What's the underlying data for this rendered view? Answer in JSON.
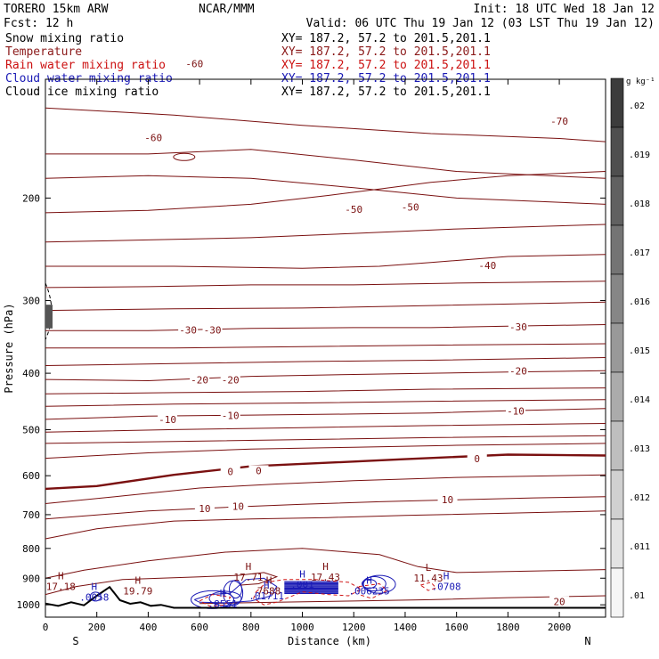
{
  "header": {
    "model": "TORERO  15km ARW",
    "center": "NCAR/MMM",
    "init": "Init: 18 UTC Wed 18 Jan 12",
    "fcst": "Fcst:   12 h",
    "valid": "Valid: 06 UTC Thu 19 Jan 12 (03 LST Thu 19 Jan 12)"
  },
  "fields": [
    {
      "name": "Snow mixing ratio",
      "xy": "XY= 187.2, 57.2 to 201.5,201.1",
      "color": "#000000"
    },
    {
      "name": "Temperature",
      "xy": "XY= 187.2, 57.2 to 201.5,201.1",
      "color": "#8b1a1a"
    },
    {
      "name": "Rain water mixing ratio",
      "xy": "XY= 187.2, 57.2 to 201.5,201.1",
      "color": "#cc1111"
    },
    {
      "name": "Cloud water mixing ratio",
      "xy": "XY= 187.2, 57.2 to 201.5,201.1",
      "color": "#1a1ab5"
    },
    {
      "name": "Cloud ice mixing ratio",
      "xy": "XY= 187.2, 57.2 to 201.5,201.1",
      "color": "#000000"
    }
  ],
  "colors": {
    "temperature": "#7a1010",
    "rain": "#d01818",
    "cloud_water": "#1a1ab5",
    "snow": "#000000",
    "terrain": "#000000"
  },
  "chart_data": {
    "type": "contour",
    "xlabel": "Distance (km)",
    "ylabel": "Pressure (hPa)",
    "xlim": [
      0,
      2180
    ],
    "ylim": [
      1050,
      125
    ],
    "x_ticks": [
      0,
      200,
      400,
      600,
      800,
      1000,
      1200,
      1400,
      1600,
      1800,
      2000
    ],
    "x_tick_labels": [
      "0",
      "200",
      "400",
      "600",
      "800",
      "1000",
      "1200",
      "1400",
      "1600",
      "1800",
      "2000"
    ],
    "y_ticks": [
      200,
      300,
      400,
      500,
      600,
      700,
      800,
      900,
      1000
    ],
    "y_tick_labels": [
      "200",
      "300",
      "400",
      "500",
      "600",
      "700",
      "800",
      "900",
      "1000"
    ],
    "end_labels": {
      "left": "S",
      "right": "N"
    },
    "colorbar": {
      "unit": "g kg⁻¹",
      "labels": [
        ".02",
        ".019",
        ".018",
        ".017",
        ".016",
        ".015",
        ".014",
        ".013",
        ".012",
        ".011",
        ".01"
      ]
    },
    "temperature_contours": [
      {
        "value": -70,
        "points": [
          [
            0,
            140
          ],
          [
            500,
            144
          ],
          [
            1000,
            150
          ],
          [
            1500,
            155
          ],
          [
            2000,
            158
          ],
          [
            2180,
            160
          ]
        ]
      },
      {
        "value": -60,
        "points": [
          [
            0,
            168
          ],
          [
            400,
            168
          ],
          [
            800,
            165
          ],
          [
            1200,
            172
          ],
          [
            1600,
            180
          ],
          [
            2180,
            185
          ]
        ]
      },
      {
        "value": -50,
        "points": [
          [
            0,
            212
          ],
          [
            400,
            210
          ],
          [
            800,
            205
          ],
          [
            1100,
            198
          ],
          [
            1300,
            193
          ],
          [
            1500,
            188
          ],
          [
            1800,
            183
          ],
          [
            2180,
            180
          ]
        ]
      },
      {
        "value": -40,
        "points": [
          [
            0,
            262
          ],
          [
            500,
            262
          ],
          [
            1000,
            264
          ],
          [
            1300,
            262
          ],
          [
            1500,
            258
          ],
          [
            1800,
            252
          ],
          [
            2180,
            250
          ]
        ]
      },
      {
        "value": -30,
        "points": [
          [
            0,
            338
          ],
          [
            400,
            338
          ],
          [
            800,
            335
          ],
          [
            1200,
            334
          ],
          [
            1500,
            334
          ],
          [
            1800,
            332
          ],
          [
            2180,
            330
          ]
        ]
      },
      {
        "value": -20,
        "points": [
          [
            0,
            410
          ],
          [
            400,
            412
          ],
          [
            800,
            405
          ],
          [
            1200,
            402
          ],
          [
            1500,
            400
          ],
          [
            1800,
            398
          ],
          [
            2180,
            396
          ]
        ]
      },
      {
        "value": -10,
        "points": [
          [
            0,
            480
          ],
          [
            400,
            474
          ],
          [
            800,
            472
          ],
          [
            1200,
            470
          ],
          [
            1500,
            468
          ],
          [
            1800,
            464
          ],
          [
            2180,
            460
          ]
        ]
      },
      {
        "value": 0,
        "points": [
          [
            0,
            632
          ],
          [
            200,
            625
          ],
          [
            500,
            598
          ],
          [
            800,
            578
          ],
          [
            1100,
            570
          ],
          [
            1400,
            562
          ],
          [
            1800,
            552
          ],
          [
            2180,
            554
          ]
        ]
      },
      {
        "value": 10,
        "points": [
          [
            0,
            712
          ],
          [
            400,
            690
          ],
          [
            700,
            680
          ],
          [
            1000,
            672
          ],
          [
            1300,
            665
          ],
          [
            1600,
            660
          ],
          [
            1900,
            655
          ],
          [
            2180,
            652
          ]
        ]
      },
      {
        "value": 20,
        "points": [
          [
            600,
            995
          ],
          [
            900,
            990
          ],
          [
            1200,
            985
          ],
          [
            1500,
            980
          ],
          [
            1800,
            972
          ],
          [
            2180,
            965
          ]
        ]
      }
    ],
    "extra_temperature_lines": [
      [
        [
          0,
          185
        ],
        [
          400,
          183
        ],
        [
          800,
          185
        ],
        [
          1200,
          192
        ],
        [
          1600,
          200
        ],
        [
          2180,
          205
        ]
      ],
      [
        [
          0,
          238
        ],
        [
          400,
          236
        ],
        [
          800,
          234
        ],
        [
          1200,
          230
        ],
        [
          1600,
          226
        ],
        [
          2180,
          222
        ]
      ],
      [
        [
          0,
          285
        ],
        [
          400,
          284
        ],
        [
          800,
          282
        ],
        [
          1200,
          282
        ],
        [
          1600,
          280
        ],
        [
          2180,
          278
        ]
      ],
      [
        [
          0,
          312
        ],
        [
          500,
          310
        ],
        [
          1000,
          309
        ],
        [
          1500,
          306
        ],
        [
          2180,
          302
        ]
      ],
      [
        [
          0,
          362
        ],
        [
          500,
          362
        ],
        [
          1000,
          360
        ],
        [
          1500,
          358
        ],
        [
          2180,
          356
        ]
      ],
      [
        [
          0,
          388
        ],
        [
          500,
          385
        ],
        [
          1000,
          382
        ],
        [
          1500,
          380
        ],
        [
          2180,
          376
        ]
      ],
      [
        [
          0,
          434
        ],
        [
          500,
          432
        ],
        [
          1000,
          430
        ],
        [
          1500,
          426
        ],
        [
          2180,
          424
        ]
      ],
      [
        [
          0,
          456
        ],
        [
          500,
          452
        ],
        [
          1000,
          450
        ],
        [
          1500,
          447
        ],
        [
          2180,
          444
        ]
      ],
      [
        [
          0,
          505
        ],
        [
          500,
          500
        ],
        [
          1000,
          496
        ],
        [
          1500,
          492
        ],
        [
          2180,
          488
        ]
      ],
      [
        [
          0,
          528
        ],
        [
          500,
          524
        ],
        [
          1000,
          520
        ],
        [
          1500,
          516
        ],
        [
          2180,
          512
        ]
      ],
      [
        [
          0,
          560
        ],
        [
          400,
          548
        ],
        [
          800,
          540
        ],
        [
          1200,
          536
        ],
        [
          1600,
          532
        ],
        [
          2180,
          528
        ]
      ],
      [
        [
          0,
          670
        ],
        [
          300,
          650
        ],
        [
          600,
          630
        ],
        [
          900,
          620
        ],
        [
          1200,
          612
        ],
        [
          1600,
          604
        ],
        [
          2180,
          598
        ]
      ],
      [
        [
          0,
          770
        ],
        [
          200,
          740
        ],
        [
          500,
          718
        ],
        [
          800,
          712
        ],
        [
          1100,
          708
        ],
        [
          1400,
          702
        ],
        [
          1800,
          696
        ],
        [
          2180,
          690
        ]
      ],
      [
        [
          0,
          900
        ],
        [
          150,
          872
        ],
        [
          400,
          840
        ],
        [
          700,
          812
        ],
        [
          1000,
          800
        ],
        [
          1300,
          820
        ],
        [
          1450,
          860
        ],
        [
          1600,
          880
        ],
        [
          2180,
          870
        ]
      ]
    ],
    "temperature_labels": [
      {
        "text": "-60",
        "x": 420,
        "y": 158
      },
      {
        "text": "-60",
        "x": 580,
        "y": 118
      },
      {
        "text": "-70",
        "x": 2000,
        "y": 148
      },
      {
        "text": "-50",
        "x": 1200,
        "y": 210
      },
      {
        "text": "-50",
        "x": 1420,
        "y": 208
      },
      {
        "text": "-40",
        "x": 1720,
        "y": 262
      },
      {
        "text": "-30",
        "x": 555,
        "y": 338
      },
      {
        "text": "-30",
        "x": 650,
        "y": 338
      },
      {
        "text": "-30",
        "x": 1840,
        "y": 334
      },
      {
        "text": "-20",
        "x": 600,
        "y": 412
      },
      {
        "text": "-20",
        "x": 720,
        "y": 412
      },
      {
        "text": "-20",
        "x": 1840,
        "y": 398
      },
      {
        "text": "-10",
        "x": 475,
        "y": 482
      },
      {
        "text": "-10",
        "x": 720,
        "y": 474
      },
      {
        "text": "-10",
        "x": 1830,
        "y": 466
      },
      {
        "text": "0",
        "x": 720,
        "y": 592
      },
      {
        "text": "0",
        "x": 1680,
        "y": 563
      },
      {
        "text": "0",
        "x": 830,
        "y": 590
      },
      {
        "text": "10",
        "x": 620,
        "y": 686
      },
      {
        "text": "10",
        "x": 750,
        "y": 680
      },
      {
        "text": "10",
        "x": 1565,
        "y": 662
      },
      {
        "text": "20",
        "x": 2000,
        "y": 990
      }
    ],
    "terrain_surface": [
      [
        0,
        995
      ],
      [
        50,
        1004
      ],
      [
        100,
        990
      ],
      [
        150,
        1002
      ],
      [
        200,
        965
      ],
      [
        250,
        932
      ],
      [
        290,
        982
      ],
      [
        330,
        996
      ],
      [
        370,
        990
      ],
      [
        410,
        1004
      ],
      [
        450,
        1000
      ],
      [
        500,
        1012
      ],
      [
        2180,
        1012
      ]
    ],
    "extrema_labels": [
      {
        "letter": "H",
        "value": "17.18",
        "x": 60,
        "y": 910
      },
      {
        "letter": "H",
        "value": ".0058",
        "x": 190,
        "y": 950
      },
      {
        "letter": "H",
        "value": "19.79",
        "x": 360,
        "y": 927
      },
      {
        "letter": "H",
        "value": ".8551",
        "x": 690,
        "y": 975
      },
      {
        "letter": "H",
        "value": "17.71",
        "x": 790,
        "y": 878
      },
      {
        "letter": "H",
        "value": ".01711",
        "x": 860,
        "y": 945
      },
      {
        "letter": "H",
        "value": "7688",
        "x": 870,
        "y": 927
      },
      {
        "letter": "H",
        "value": "17.43",
        "x": 1090,
        "y": 878
      },
      {
        "letter": "H",
        "value": ".001",
        "x": 1000,
        "y": 904
      },
      {
        "letter": "H",
        "value": ".006235",
        "x": 1260,
        "y": 926
      },
      {
        "letter": "L",
        "value": "11.43",
        "x": 1490,
        "y": 880
      },
      {
        "letter": "H",
        "value": ".0708",
        "x": 1560,
        "y": 910
      }
    ]
  }
}
